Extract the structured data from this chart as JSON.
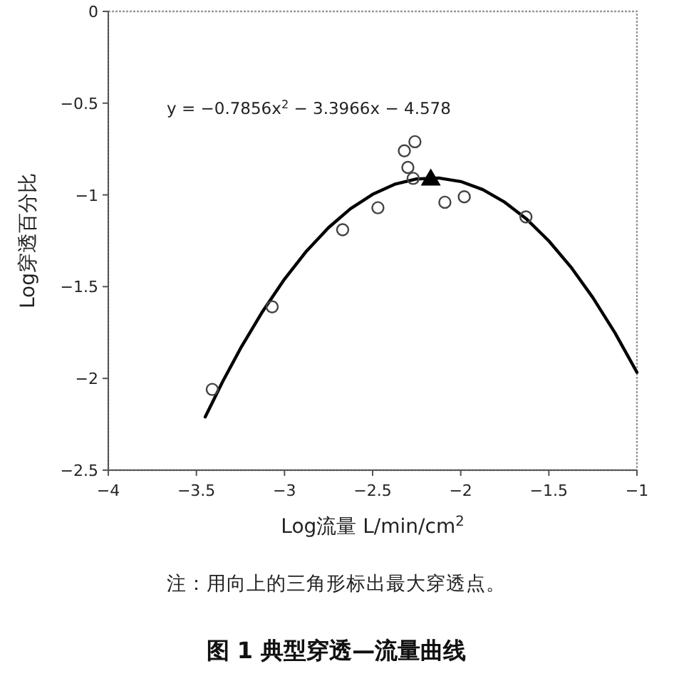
{
  "chart_data": {
    "type": "scatter",
    "title": "图 1 典型穿透—流量曲线",
    "xlabel": "Log流量 L/min/cm$^{2}$",
    "ylabel": "Log穿透百分比",
    "annotations": [
      "y = −0.7856x$^{2}$ − 3.3966x − 4.578",
      "注：用向上的三角形标出最大穿透点。"
    ],
    "xlim": [
      -4,
      -1
    ],
    "ylim": [
      -2.5,
      0
    ],
    "xticks": [
      -4,
      -3.5,
      -3,
      -2.5,
      -2,
      -1.5,
      -1
    ],
    "yticks": [
      -2.5,
      -2,
      -1.5,
      -1,
      -0.5,
      0
    ],
    "grid": false,
    "series": [
      {
        "type": "scatter",
        "marker": "circle",
        "color": "#444444",
        "x": [
          -3.41,
          -3.07,
          -2.67,
          -2.47,
          -2.32,
          -2.26,
          -2.3,
          -2.27,
          -2.09,
          -1.98,
          -1.63
        ],
        "values": [
          -2.06,
          -1.61,
          -1.19,
          -1.07,
          -0.76,
          -0.71,
          -0.85,
          -0.91,
          -1.04,
          -1.01,
          -1.12
        ]
      },
      {
        "type": "scatter",
        "marker": "triangle",
        "color": "#000000",
        "x": [
          -2.17
        ],
        "values": [
          -0.91
        ]
      },
      {
        "type": "line",
        "marker": "none",
        "color": "#000000",
        "x": [
          -3.45,
          -3.35,
          -3.25,
          -3.125,
          -3.0,
          -2.875,
          -2.75,
          -2.625,
          -2.5,
          -2.375,
          -2.25,
          -2.125,
          -2.0,
          -1.875,
          -1.75,
          -1.625,
          -1.5,
          -1.375,
          -1.25,
          -1.125,
          -1.0
        ],
        "values": [
          -2.21,
          -2.016,
          -1.837,
          -1.636,
          -1.459,
          -1.306,
          -1.178,
          -1.075,
          -0.997,
          -0.942,
          -0.913,
          -0.908,
          -0.927,
          -0.971,
          -1.04,
          -1.133,
          -1.251,
          -1.393,
          -1.56,
          -1.751,
          -1.967
        ]
      }
    ]
  }
}
